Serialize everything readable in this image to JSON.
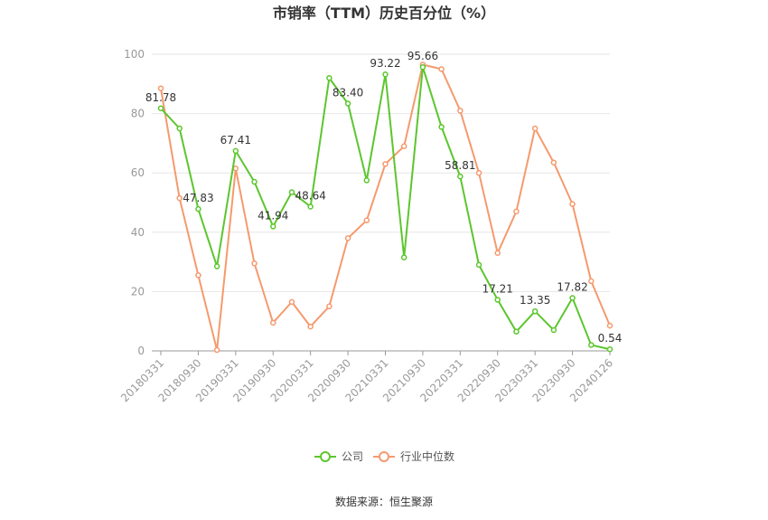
{
  "colors": {
    "company": "#5cc62e",
    "industry": "#f59a6e",
    "grid": "#e6e6e6",
    "axis": "#999999"
  },
  "chart_data": {
    "type": "line",
    "title": "市销率（TTM）历史百分位（%）",
    "source": "数据来源：恒生聚源",
    "ylim": [
      0,
      100
    ],
    "yticks": [
      "0",
      "20",
      "40",
      "60",
      "80",
      "100"
    ],
    "xtick_labels": [
      "20180331",
      "20180930",
      "20190331",
      "20190930",
      "20200331",
      "20200930",
      "20210331",
      "20210930",
      "20220331",
      "20220930",
      "20230331",
      "20230930",
      "20240126"
    ],
    "x": [
      "20180331",
      "20180630",
      "20180930",
      "20181231",
      "20190331",
      "20190630",
      "20190930",
      "20191231",
      "20200331",
      "20200630",
      "20200930",
      "20201231",
      "20210331",
      "20210630",
      "20210930",
      "20211231",
      "20220331",
      "20220630",
      "20220930",
      "20221231",
      "20230331",
      "20230630",
      "20230930",
      "20231231",
      "20240126"
    ],
    "grid": true,
    "legend": "bottom-center",
    "series": [
      {
        "name": "公司",
        "color": "#5cc62e",
        "values": [
          81.78,
          75,
          47.83,
          28.5,
          67.41,
          57,
          41.94,
          53.5,
          48.64,
          92,
          83.4,
          57.5,
          93.22,
          31.5,
          95.66,
          75.5,
          58.81,
          29,
          17.21,
          6.5,
          13.35,
          7,
          17.82,
          2,
          0.54
        ],
        "labels": [
          "81.78",
          "",
          "47.83",
          "",
          "67.41",
          "",
          "41.94",
          "",
          "48.64",
          "",
          "83.40",
          "",
          "93.22",
          "",
          "95.66",
          "",
          "58.81",
          "",
          "17.21",
          "",
          "13.35",
          "",
          "17.82",
          "",
          "0.54"
        ]
      },
      {
        "name": "行业中位数",
        "color": "#f59a6e",
        "values": [
          88.5,
          51.5,
          25.5,
          0.3,
          61.5,
          29.5,
          9.5,
          16.5,
          8.2,
          15,
          38,
          44,
          63,
          69,
          96.5,
          95,
          81,
          60,
          33,
          47,
          75,
          63.5,
          49.5,
          23.5,
          8.5
        ],
        "labels": []
      }
    ]
  }
}
